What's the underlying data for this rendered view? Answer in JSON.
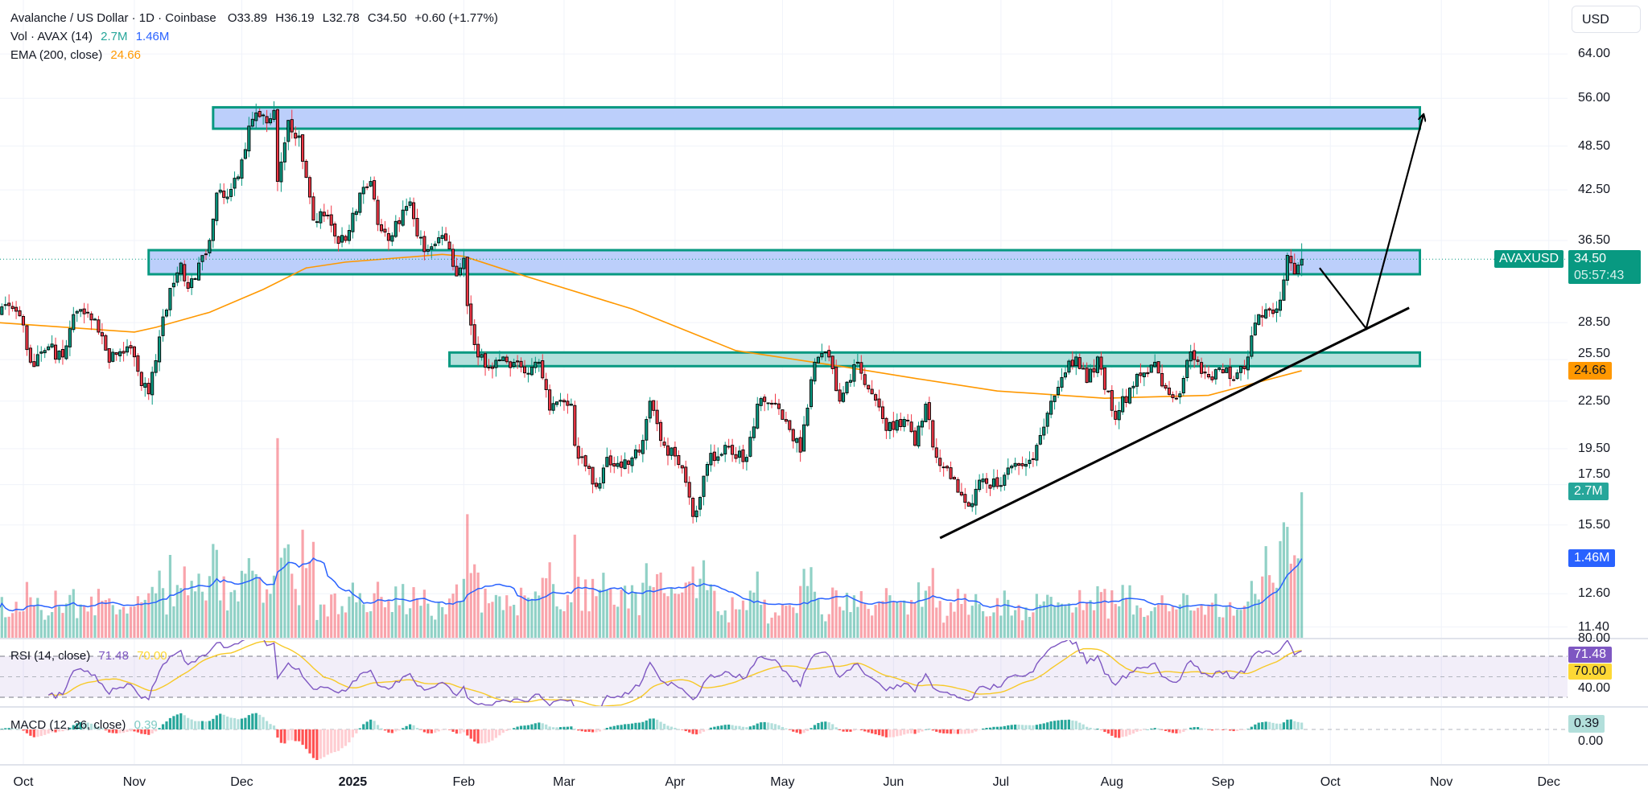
{
  "header": {
    "title": "Avalanche / US Dollar · 1D · Coinbase",
    "open": "O33.89",
    "high": "H36.19",
    "low": "L32.78",
    "close": "C34.50",
    "change": "+0.60 (+1.77%)",
    "ohlc": {
      "o": 33.89,
      "h": 36.19,
      "l": 32.78,
      "c": 34.5
    },
    "volume_label": "Vol · AVAX (14)",
    "volume_value": "2.7M",
    "volume_ma_value": "1.46M",
    "ema_label": "EMA (200, close)",
    "ema_value": "24.66"
  },
  "rsi_legend": {
    "label": "RSI (14, close)",
    "value": "71.48",
    "ma_value": "70.00"
  },
  "macd_legend": {
    "label": "MACD (12, 26, close)",
    "value": "0.39"
  },
  "currency_button": "USD",
  "price_axis": {
    "scale": "log",
    "labels": [
      "64.00",
      "56.00",
      "48.50",
      "42.50",
      "36.50",
      "28.50",
      "25.50",
      "22.50",
      "19.50",
      "17.50",
      "15.50",
      "12.60",
      "11.40"
    ]
  },
  "rsi_axis": {
    "labels": [
      "80.00",
      "40.00"
    ],
    "levels": [
      70,
      50,
      30
    ]
  },
  "macd_axis": {
    "labels": [
      "0.00"
    ]
  },
  "badges": {
    "symbol": "AVAXUSD",
    "last_price": "34.50",
    "countdown": "05:57:43",
    "ema": "24.66",
    "volume": "2.7M",
    "volume_ma": "1.46M",
    "rsi": "71.48",
    "rsi_ma": "70.00",
    "macd": "0.39"
  },
  "time_axis": [
    {
      "label": "Oct",
      "date": "2024-10-01"
    },
    {
      "label": "Nov",
      "date": "2024-11-01"
    },
    {
      "label": "Dec",
      "date": "2024-12-01"
    },
    {
      "label": "2025",
      "date": "2025-01-01",
      "year": true
    },
    {
      "label": "Feb",
      "date": "2025-02-01"
    },
    {
      "label": "Mar",
      "date": "2025-03-01"
    },
    {
      "label": "Apr",
      "date": "2025-04-01"
    },
    {
      "label": "May",
      "date": "2025-05-01"
    },
    {
      "label": "Jun",
      "date": "2025-06-01"
    },
    {
      "label": "Jul",
      "date": "2025-07-01"
    },
    {
      "label": "Aug",
      "date": "2025-08-01"
    },
    {
      "label": "Sep",
      "date": "2025-09-01"
    },
    {
      "label": "Oct",
      "date": "2025-10-01"
    },
    {
      "label": "Nov",
      "date": "2025-11-01"
    },
    {
      "label": "Dec",
      "date": "2025-12-01"
    }
  ],
  "colors": {
    "up": "#089981",
    "down": "#f23645",
    "ema": "#ff9800",
    "volume_ma": "#2962ff",
    "rsi": "#7e57c2",
    "rsi_ma": "#fdd835",
    "zone_border": "#089981",
    "zone_blue": "#bccffb",
    "zone_green": "#b2dfdb",
    "drawing": "#000000"
  },
  "chart_data": {
    "type": "candlestick",
    "symbol": "AVAXUSD",
    "interval": "1D",
    "y_scale": "log",
    "close_keypoints": [
      [
        "2024-09-24",
        29.2
      ],
      [
        "2024-09-27",
        30.0
      ],
      [
        "2024-10-01",
        28.3
      ],
      [
        "2024-10-03",
        25.3
      ],
      [
        "2024-10-08",
        26.5
      ],
      [
        "2024-10-12",
        25.7
      ],
      [
        "2024-10-15",
        29.2
      ],
      [
        "2024-10-21",
        28.8
      ],
      [
        "2024-10-25",
        25.3
      ],
      [
        "2024-10-30",
        26.5
      ],
      [
        "2024-11-05",
        23.0
      ],
      [
        "2024-11-08",
        27.3
      ],
      [
        "2024-11-11",
        31.6
      ],
      [
        "2024-11-14",
        34.1
      ],
      [
        "2024-11-16",
        31.6
      ],
      [
        "2024-11-19",
        34.1
      ],
      [
        "2024-11-21",
        35.0
      ],
      [
        "2024-11-24",
        42.1
      ],
      [
        "2024-11-27",
        41.6
      ],
      [
        "2024-11-30",
        44.2
      ],
      [
        "2024-12-03",
        51.5
      ],
      [
        "2024-12-06",
        53.0
      ],
      [
        "2024-12-08",
        52.0
      ],
      [
        "2024-12-10",
        54.0
      ],
      [
        "2024-12-11",
        43.6
      ],
      [
        "2024-12-14",
        52.4
      ],
      [
        "2024-12-17",
        50.0
      ],
      [
        "2024-12-20",
        41.6
      ],
      [
        "2024-12-21",
        38.8
      ],
      [
        "2024-12-24",
        39.3
      ],
      [
        "2024-12-27",
        37.0
      ],
      [
        "2024-12-30",
        36.5
      ],
      [
        "2025-01-03",
        42.1
      ],
      [
        "2025-01-06",
        43.6
      ],
      [
        "2025-01-08",
        38.3
      ],
      [
        "2025-01-11",
        36.5
      ],
      [
        "2025-01-15",
        40.0
      ],
      [
        "2025-01-17",
        41.0
      ],
      [
        "2025-01-19",
        37.0
      ],
      [
        "2025-01-22",
        35.5
      ],
      [
        "2025-01-27",
        36.5
      ],
      [
        "2025-01-30",
        32.8
      ],
      [
        "2025-02-01",
        34.6
      ],
      [
        "2025-02-02",
        30.0
      ],
      [
        "2025-02-05",
        25.7
      ],
      [
        "2025-02-08",
        24.9
      ],
      [
        "2025-02-12",
        25.7
      ],
      [
        "2025-02-18",
        24.5
      ],
      [
        "2025-02-22",
        25.3
      ],
      [
        "2025-02-25",
        21.9
      ],
      [
        "2025-03-03",
        22.3
      ],
      [
        "2025-03-04",
        19.7
      ],
      [
        "2025-03-10",
        17.4
      ],
      [
        "2025-03-13",
        19.0
      ],
      [
        "2025-03-19",
        18.6
      ],
      [
        "2025-03-22",
        19.3
      ],
      [
        "2025-03-25",
        22.5
      ],
      [
        "2025-03-29",
        19.7
      ],
      [
        "2025-04-03",
        18.4
      ],
      [
        "2025-04-06",
        15.9
      ],
      [
        "2025-04-10",
        18.6
      ],
      [
        "2025-04-15",
        19.7
      ],
      [
        "2025-04-21",
        19.0
      ],
      [
        "2025-04-24",
        22.3
      ],
      [
        "2025-04-28",
        22.3
      ],
      [
        "2025-05-01",
        21.3
      ],
      [
        "2025-05-06",
        19.3
      ],
      [
        "2025-05-10",
        25.3
      ],
      [
        "2025-05-14",
        25.7
      ],
      [
        "2025-05-17",
        22.5
      ],
      [
        "2025-05-22",
        25.3
      ],
      [
        "2025-05-26",
        23.0
      ],
      [
        "2025-05-30",
        20.6
      ],
      [
        "2025-06-04",
        21.3
      ],
      [
        "2025-06-07",
        19.7
      ],
      [
        "2025-06-10",
        22.3
      ],
      [
        "2025-06-13",
        19.0
      ],
      [
        "2025-06-18",
        17.8
      ],
      [
        "2025-06-22",
        16.4
      ],
      [
        "2025-06-26",
        17.8
      ],
      [
        "2025-06-30",
        17.4
      ],
      [
        "2025-07-03",
        18.4
      ],
      [
        "2025-07-08",
        18.6
      ],
      [
        "2025-07-11",
        19.7
      ],
      [
        "2025-07-15",
        22.5
      ],
      [
        "2025-07-19",
        24.5
      ],
      [
        "2025-07-22",
        25.7
      ],
      [
        "2025-07-25",
        23.8
      ],
      [
        "2025-07-28",
        25.7
      ],
      [
        "2025-08-02",
        21.3
      ],
      [
        "2025-08-06",
        23.4
      ],
      [
        "2025-08-10",
        24.5
      ],
      [
        "2025-08-13",
        25.3
      ],
      [
        "2025-08-16",
        23.4
      ],
      [
        "2025-08-20",
        23.0
      ],
      [
        "2025-08-23",
        26.1
      ],
      [
        "2025-08-28",
        24.2
      ],
      [
        "2025-09-01",
        24.5
      ],
      [
        "2025-09-05",
        24.5
      ],
      [
        "2025-09-08",
        25.7
      ],
      [
        "2025-09-11",
        29.2
      ],
      [
        "2025-09-14",
        29.6
      ],
      [
        "2025-09-17",
        30.5
      ],
      [
        "2025-09-19",
        34.9
      ],
      [
        "2025-09-21",
        33.0
      ],
      [
        "2025-09-22",
        33.89
      ],
      [
        "2025-09-23",
        34.5
      ]
    ],
    "ema200_keypoints": [
      [
        "2024-09-24",
        28.5
      ],
      [
        "2024-11-01",
        27.7
      ],
      [
        "2024-11-07",
        28.1
      ],
      [
        "2024-11-22",
        29.4
      ],
      [
        "2024-12-07",
        31.5
      ],
      [
        "2024-12-19",
        33.6
      ],
      [
        "2024-12-30",
        34.2
      ],
      [
        "2025-01-26",
        35.0
      ],
      [
        "2025-02-01",
        34.8
      ],
      [
        "2025-02-18",
        32.8
      ],
      [
        "2025-03-20",
        29.7
      ],
      [
        "2025-04-18",
        26.2
      ],
      [
        "2025-05-17",
        25.0
      ],
      [
        "2025-06-07",
        24.1
      ],
      [
        "2025-06-30",
        23.2
      ],
      [
        "2025-07-30",
        22.7
      ],
      [
        "2025-08-28",
        22.9
      ],
      [
        "2025-09-23",
        24.66
      ]
    ],
    "last_volume_m": 2.7,
    "zones": [
      {
        "name": "upper-resistance-zone",
        "from": "2024-11-23",
        "to": "2025-10-26",
        "low": 51.1,
        "high": 54.5,
        "fill": "blue"
      },
      {
        "name": "mid-resistance-zone",
        "from": "2024-11-05",
        "to": "2025-10-26",
        "low": 32.97,
        "high": 35.45,
        "fill": "blue"
      },
      {
        "name": "support-zone",
        "from": "2025-01-28",
        "to": "2025-10-26",
        "low": 25.0,
        "high": 26.05,
        "fill": "green"
      }
    ],
    "trendline": [
      [
        "2025-06-14",
        14.9
      ],
      [
        "2025-10-23",
        29.8
      ]
    ],
    "projection_path": [
      [
        "2025-09-28",
        33.6
      ],
      [
        "2025-10-11",
        28.0
      ],
      [
        "2025-10-27",
        53.3
      ]
    ],
    "rsi_levels": [
      70,
      50,
      30
    ]
  }
}
